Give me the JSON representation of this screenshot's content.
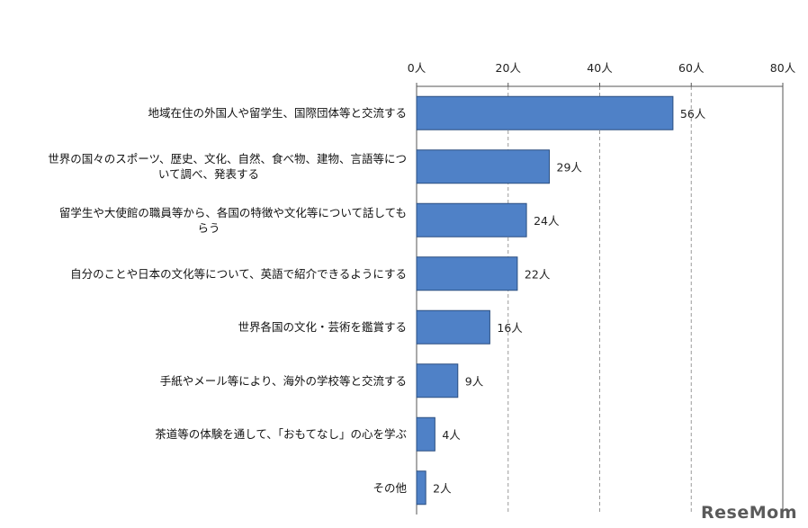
{
  "chart_data": {
    "type": "bar",
    "orientation": "horizontal",
    "categories": [
      "地域在住の外国人や留学生、国際団体等と交流する",
      "世界の国々のスポーツ、歴史、文化、自然、食べ物、建物、言語等について調べ、発表する",
      "留学生や大使館の職員等から、各国の特徴や文化等について話してもらう",
      "自分のことや日本の文化等について、英語で紹介できるようにする",
      "世界各国の文化・芸術を鑑賞する",
      "手紙やメール等により、海外の学校等と交流する",
      "茶道等の体験を通して、「おもてなし」の心を学ぶ",
      "その他"
    ],
    "category_lines": [
      [
        "地域在住の外国人や留学生、国際団体等と交流する"
      ],
      [
        "世界の国々のスポーツ、歴史、文化、自然、食べ物、建物、言語等につ",
        "いて調べ、発表する"
      ],
      [
        "留学生や大使館の職員等から、各国の特徴や文化等について話しても",
        "らう"
      ],
      [
        "自分のことや日本の文化等について、英語で紹介できるようにする"
      ],
      [
        "世界各国の文化・芸術を鑑賞する"
      ],
      [
        "手紙やメール等により、海外の学校等と交流する"
      ],
      [
        "茶道等の体験を通して、「おもてなし」の心を学ぶ"
      ],
      [
        "その他"
      ]
    ],
    "values": [
      56,
      29,
      24,
      22,
      16,
      9,
      4,
      2
    ],
    "value_labels": [
      "56人",
      "29人",
      "24人",
      "22人",
      "16人",
      "9人",
      "4人",
      "2人"
    ],
    "xticks": [
      "0人",
      "20人",
      "40人",
      "60人",
      "80人"
    ],
    "xlim": [
      0,
      80
    ],
    "x_axis_position": "top",
    "grid": "vertical dashed",
    "bar_color": "#4F81C7",
    "bar_edge_color": "#2b4f80"
  },
  "watermark": "ReseMom"
}
